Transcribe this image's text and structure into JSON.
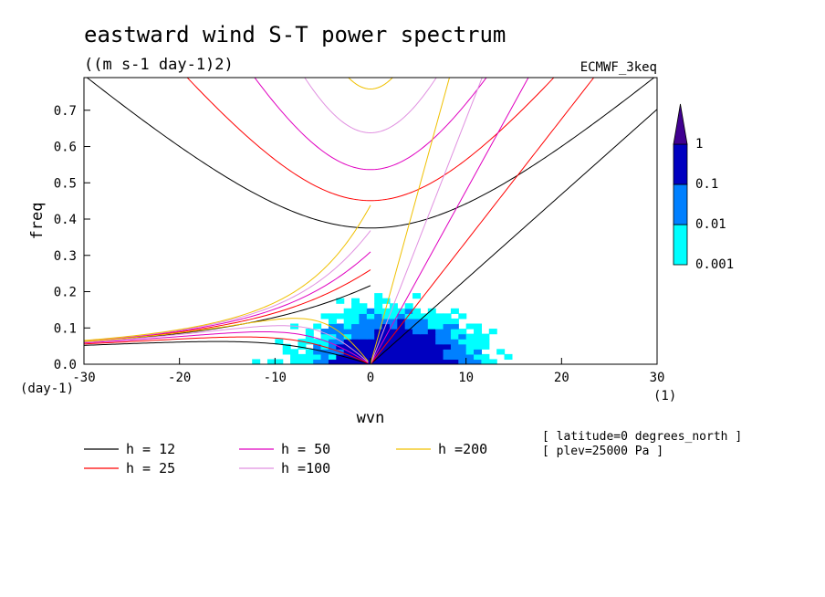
{
  "chart_data": {
    "type": "heatmap",
    "title": "eastward wind S-T power spectrum",
    "subtitle": "((m s-1 day-1)2)",
    "source_label": "ECMWF_3keq",
    "xlabel": "wvn",
    "ylabel": "freq",
    "x_unit": "(1)",
    "y_unit": "(day-1)",
    "xlim": [
      -30,
      30
    ],
    "ylim": [
      0,
      0.79
    ],
    "x_ticks": [
      -30,
      -20,
      -10,
      0,
      10,
      20,
      30
    ],
    "x_tick_labels": [
      "-30",
      "-20",
      "-10",
      "0",
      "10",
      "20",
      "30"
    ],
    "y_ticks": [
      0,
      0.1,
      0.2,
      0.3,
      0.4,
      0.5,
      0.6,
      0.7
    ],
    "y_tick_labels": [
      "0.0",
      "0.1",
      "0.2",
      "0.3",
      "0.4",
      "0.5",
      "0.6",
      "0.7"
    ],
    "colorbar": {
      "levels": [
        "0.001",
        "0.01",
        "0.1",
        "1"
      ],
      "colors": [
        "#00ffff",
        "#0080ff",
        "#0000c0",
        "#400090"
      ]
    },
    "dispersion_curves": [
      {
        "label": "h = 12",
        "h": 12,
        "color": "#000000"
      },
      {
        "label": "h = 25",
        "h": 25,
        "color": "#ff0000"
      },
      {
        "label": "h = 50",
        "h": 50,
        "color": "#e000c0"
      },
      {
        "label": "h =100",
        "h": 100,
        "color": "#e090e0"
      },
      {
        "label": "h =200",
        "h": 200,
        "color": "#f0c000"
      }
    ],
    "annotations": [
      "[ latitude=0 degrees_north ]",
      "[ plev=25000 Pa ]"
    ]
  }
}
